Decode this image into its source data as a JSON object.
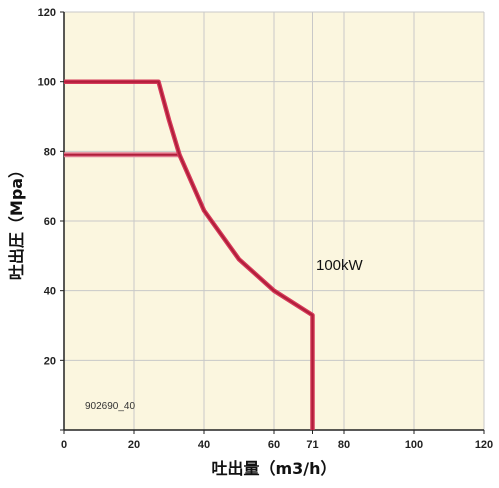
{
  "chart_data": {
    "type": "line",
    "xlabel": "吐出量（m3/h）",
    "ylabel": "吐出圧（Mpa）",
    "xlim": [
      0,
      120
    ],
    "ylim": [
      0,
      120
    ],
    "x_ticks": [
      0,
      20,
      40,
      60,
      71,
      80,
      100,
      120
    ],
    "y_ticks": [
      0,
      20,
      40,
      60,
      80,
      100,
      120
    ],
    "grid": true,
    "series": [
      {
        "values": [
          [
            0,
            100
          ],
          [
            27,
            100
          ],
          [
            30,
            89
          ],
          [
            33,
            79
          ],
          [
            40,
            63
          ],
          [
            50,
            49
          ],
          [
            60,
            40
          ],
          [
            71,
            33
          ],
          [
            71,
            0
          ]
        ]
      },
      {
        "values": [
          [
            0,
            79
          ],
          [
            33,
            79
          ]
        ]
      }
    ],
    "annotations": [
      {
        "text": "100kW",
        "x": 72,
        "y": 46
      },
      {
        "text": "902690_40",
        "x": 6,
        "y": 6
      }
    ],
    "colors": {
      "background": "#fbf6df",
      "grid": "#c8c8c8",
      "curve_main": "#d63a5a",
      "curve_edge": "#b01e3a",
      "curve_secondary": "#e27a90"
    }
  }
}
